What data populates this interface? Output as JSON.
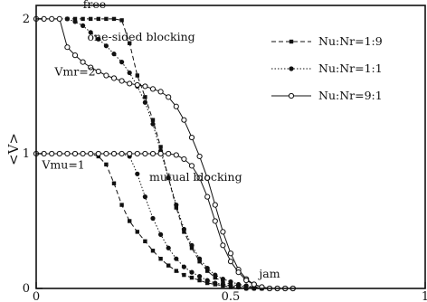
{
  "chart_data": {
    "type": "line",
    "title": "",
    "xlabel": "",
    "ylabel": "<V>",
    "xlim": [
      0,
      1
    ],
    "ylim": [
      0,
      2.1
    ],
    "xticks": [
      {
        "value": 0,
        "label": "0"
      },
      {
        "value": 0.5,
        "label": "0.5"
      },
      {
        "value": 1,
        "label": "1"
      }
    ],
    "yticks": [
      {
        "value": 0,
        "label": "0"
      },
      {
        "value": 1,
        "label": "1"
      },
      {
        "value": 2,
        "label": "2"
      }
    ],
    "grid": false,
    "legend_position": "top-right",
    "series": [
      {
        "name": "Nu:Nr=1:9",
        "style": "dashed",
        "marker": "square",
        "groups": [
          {
            "x": [
              0,
              0.02,
              0.04,
              0.06,
              0.08,
              0.1,
              0.12,
              0.14,
              0.16,
              0.18,
              0.2,
              0.22,
              0.24,
              0.26,
              0.28,
              0.3,
              0.32,
              0.34,
              0.36,
              0.38,
              0.4,
              0.42,
              0.44,
              0.46,
              0.48,
              0.5,
              0.52,
              0.54,
              0.56,
              0.58,
              0.6,
              0.62,
              0.64,
              0.66
            ],
            "y": [
              2,
              2,
              2,
              2,
              2,
              2,
              2,
              2,
              2,
              2,
              2,
              1.99,
              1.82,
              1.58,
              1.42,
              1.25,
              1.05,
              0.82,
              0.6,
              0.42,
              0.3,
              0.2,
              0.13,
              0.08,
              0.05,
              0.03,
              0.02,
              0.01,
              0.01,
              0,
              0,
              0,
              0,
              0
            ]
          },
          {
            "x": [
              0,
              0.02,
              0.04,
              0.06,
              0.08,
              0.1,
              0.12,
              0.14,
              0.16,
              0.18,
              0.2,
              0.22,
              0.24,
              0.26,
              0.28,
              0.3,
              0.32,
              0.34,
              0.36,
              0.38,
              0.4,
              0.42,
              0.44,
              0.46,
              0.48,
              0.5,
              0.52,
              0.54,
              0.56,
              0.58,
              0.6
            ],
            "y": [
              1,
              1,
              1,
              1,
              1,
              1,
              1,
              1,
              0.98,
              0.92,
              0.78,
              0.62,
              0.5,
              0.42,
              0.35,
              0.28,
              0.22,
              0.17,
              0.13,
              0.1,
              0.08,
              0.06,
              0.04,
              0.03,
              0.02,
              0.01,
              0.01,
              0,
              0,
              0,
              0
            ]
          }
        ]
      },
      {
        "name": "Nu:Nr=1:1",
        "style": "dotted",
        "marker": "filled-circle",
        "groups": [
          {
            "x": [
              0,
              0.02,
              0.04,
              0.06,
              0.08,
              0.1,
              0.12,
              0.14,
              0.16,
              0.18,
              0.2,
              0.22,
              0.24,
              0.26,
              0.28,
              0.3,
              0.32,
              0.34,
              0.36,
              0.38,
              0.4,
              0.42,
              0.44,
              0.46,
              0.48,
              0.5,
              0.52,
              0.54,
              0.56,
              0.58,
              0.6,
              0.62,
              0.64,
              0.66
            ],
            "y": [
              2,
              2,
              2,
              2,
              2,
              1.98,
              1.95,
              1.9,
              1.85,
              1.8,
              1.74,
              1.68,
              1.6,
              1.5,
              1.38,
              1.22,
              1.02,
              0.82,
              0.62,
              0.44,
              0.32,
              0.22,
              0.15,
              0.1,
              0.07,
              0.05,
              0.03,
              0.02,
              0.01,
              0.01,
              0,
              0,
              0,
              0
            ]
          },
          {
            "x": [
              0,
              0.02,
              0.04,
              0.06,
              0.08,
              0.1,
              0.12,
              0.14,
              0.16,
              0.18,
              0.2,
              0.22,
              0.24,
              0.26,
              0.28,
              0.3,
              0.32,
              0.34,
              0.36,
              0.38,
              0.4,
              0.42,
              0.44,
              0.46,
              0.48,
              0.5,
              0.52,
              0.54,
              0.56,
              0.58,
              0.6
            ],
            "y": [
              1,
              1,
              1,
              1,
              1,
              1,
              1,
              1,
              1,
              1,
              1,
              1,
              0.98,
              0.85,
              0.68,
              0.52,
              0.4,
              0.3,
              0.22,
              0.16,
              0.12,
              0.09,
              0.06,
              0.04,
              0.03,
              0.02,
              0.01,
              0,
              0,
              0,
              0
            ]
          }
        ]
      },
      {
        "name": "Nu:Nr=9:1",
        "style": "solid",
        "marker": "open-circle",
        "groups": [
          {
            "x": [
              0,
              0.02,
              0.04,
              0.06,
              0.08,
              0.1,
              0.12,
              0.14,
              0.16,
              0.18,
              0.2,
              0.22,
              0.24,
              0.26,
              0.28,
              0.3,
              0.32,
              0.34,
              0.36,
              0.38,
              0.4,
              0.42,
              0.44,
              0.46,
              0.48,
              0.5,
              0.52,
              0.54,
              0.56,
              0.58,
              0.6,
              0.62,
              0.64,
              0.66
            ],
            "y": [
              2,
              2,
              2,
              2,
              1.79,
              1.73,
              1.68,
              1.64,
              1.61,
              1.58,
              1.56,
              1.54,
              1.52,
              1.51,
              1.5,
              1.48,
              1.46,
              1.42,
              1.35,
              1.25,
              1.12,
              0.98,
              0.82,
              0.62,
              0.42,
              0.26,
              0.14,
              0.07,
              0.03,
              0.01,
              0,
              0,
              0,
              0
            ]
          },
          {
            "x": [
              0,
              0.02,
              0.04,
              0.06,
              0.08,
              0.1,
              0.12,
              0.14,
              0.16,
              0.18,
              0.2,
              0.22,
              0.24,
              0.26,
              0.28,
              0.3,
              0.32,
              0.34,
              0.36,
              0.38,
              0.4,
              0.42,
              0.44,
              0.46,
              0.48,
              0.5,
              0.52,
              0.54,
              0.56,
              0.58,
              0.6,
              0.62,
              0.64,
              0.66
            ],
            "y": [
              1,
              1,
              1,
              1,
              1,
              1,
              1,
              1,
              1,
              1,
              1,
              1,
              1,
              1,
              1,
              1,
              1,
              1,
              0.99,
              0.96,
              0.91,
              0.82,
              0.68,
              0.5,
              0.32,
              0.2,
              0.12,
              0.06,
              0.03,
              0.01,
              0,
              0,
              0,
              0
            ]
          }
        ]
      }
    ],
    "annotations": [
      {
        "text": "free",
        "x": 0.15,
        "y": 2.08
      },
      {
        "text": "one-sided  blocking",
        "x": 0.27,
        "y": 1.84
      },
      {
        "text": "Vmr=2",
        "x": 0.1,
        "y": 1.58
      },
      {
        "text": "mutual  blocking",
        "x": 0.41,
        "y": 0.8
      },
      {
        "text": "Vmu=1",
        "x": 0.07,
        "y": 0.89
      },
      {
        "text": "jam",
        "x": 0.6,
        "y": 0.08
      }
    ]
  }
}
